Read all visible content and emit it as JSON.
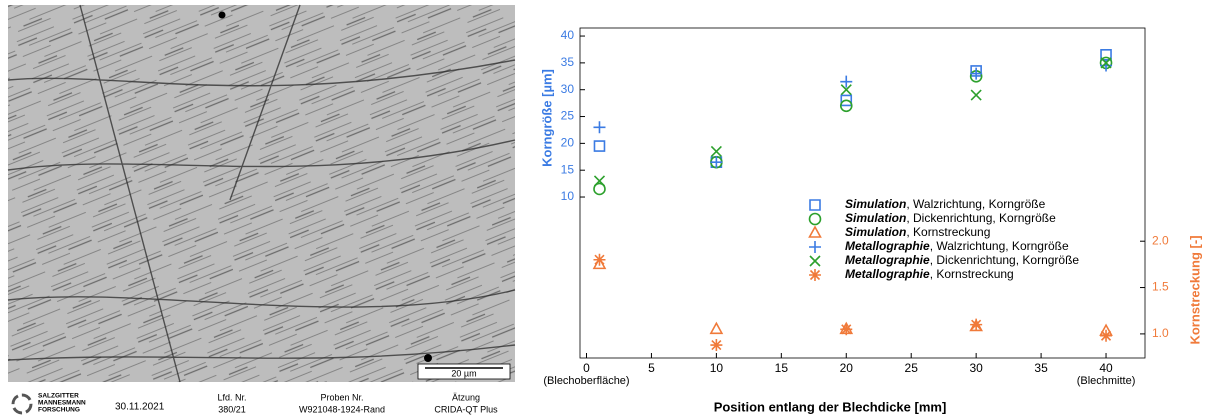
{
  "micrograph": {
    "scale_bar": "20 µm",
    "logo": [
      "SALZGITTER",
      "MANNESMANN",
      "FORSCHUNG"
    ],
    "date": "30.11.2021",
    "fields": [
      {
        "label": "Lfd. Nr.",
        "value": "380/21"
      },
      {
        "label": "Proben Nr.",
        "value": "W921048-1924-Rand"
      },
      {
        "label": "Ätzung",
        "value": "CRIDA-QT Plus"
      }
    ]
  },
  "chart_data": {
    "type": "scatter",
    "x_label": "Position entlang der Blechdicke [mm]",
    "x_annotations": [
      "(Blechoberfläche)",
      "(Blechmitte)"
    ],
    "y_label": "Korngröße [µm]",
    "y2_label": "Kornstreckung [-]",
    "x": [
      1,
      10,
      20,
      30,
      40
    ],
    "xlim": [
      -0.5,
      43
    ],
    "xticks": [
      0,
      5,
      10,
      15,
      20,
      25,
      30,
      35,
      40
    ],
    "ylim": [
      -20,
      41.5
    ],
    "yticks": [
      10,
      15,
      20,
      25,
      30,
      35,
      40
    ],
    "y2lim": [
      0.74,
      4.3
    ],
    "y2ticks": [
      {
        "value": 1.0,
        "label": "1.0"
      },
      {
        "value": 1.5,
        "label": "1.5"
      },
      {
        "value": 2.0,
        "label": "2.0"
      }
    ],
    "y_color": "#3b7be3",
    "y2_color": "#f07a3a",
    "series": [
      {
        "name": "Simulation, Walzrichtung, Korngröße",
        "color": "#3b7be3",
        "marker": "square",
        "values": [
          19.5,
          16.5,
          28,
          33.5,
          36.5
        ]
      },
      {
        "name": "Simulation, Dickenrichtung, Korngröße",
        "color": "#2ca02c",
        "marker": "circle",
        "values": [
          11.5,
          16.5,
          27,
          32.5,
          35
        ]
      },
      {
        "name": "Simulation, Kornstreckung",
        "color": "#f07a3a",
        "marker": "triangle",
        "axis": "y2",
        "values": [
          1.75,
          1.05,
          1.05,
          1.08,
          1.03
        ]
      },
      {
        "name": "Metallographie, Walzrichtung, Korngröße",
        "color": "#3b7be3",
        "marker": "plus",
        "values": [
          23,
          16.5,
          31.5,
          33,
          34.5
        ]
      },
      {
        "name": "Metallographie, Dickenrichtung, Korngröße",
        "color": "#2ca02c",
        "marker": "cross",
        "values": [
          13,
          18.5,
          30,
          29,
          35
        ]
      },
      {
        "name": "Metallographie, Kornstreckung",
        "color": "#f07a3a",
        "marker": "star",
        "axis": "y2",
        "values": [
          1.8,
          0.88,
          1.05,
          1.1,
          0.98
        ]
      }
    ]
  }
}
